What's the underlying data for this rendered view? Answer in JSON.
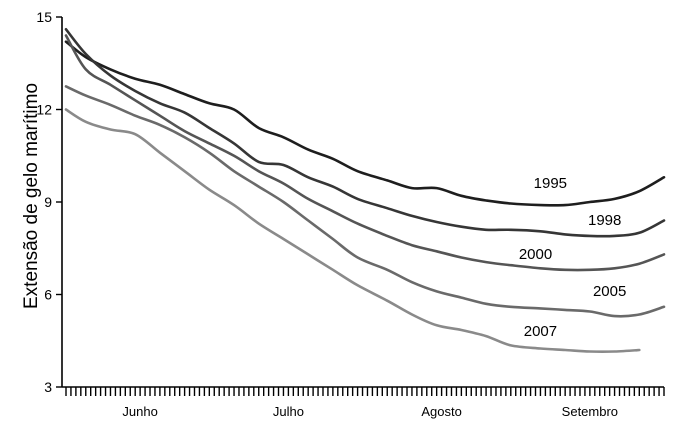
{
  "chart_data": {
    "type": "line",
    "title": "",
    "xlabel": "",
    "ylabel": "Extensão de gelo marítimo",
    "x_domain": [
      "Junho",
      "Setembro"
    ],
    "x_tick_labels": [
      "Junho",
      "Julho",
      "Agosto",
      "Setembro"
    ],
    "y_ticks": [
      3,
      6,
      9,
      12,
      15
    ],
    "ylim": [
      3,
      15
    ],
    "grid": false,
    "legend": "labels at line ends",
    "series": [
      {
        "name": "1995",
        "color": "#1e1e1e",
        "x": [
          "06-01",
          "06-05",
          "06-10",
          "06-15",
          "06-20",
          "06-25",
          "06-30",
          "07-05",
          "07-10",
          "07-15",
          "07-20",
          "07-25",
          "07-30",
          "08-05",
          "08-10",
          "08-15",
          "08-20",
          "08-25",
          "08-30",
          "09-05",
          "09-10",
          "09-15",
          "09-20",
          "09-25",
          "09-30"
        ],
        "values": [
          14.2,
          13.7,
          13.3,
          13.0,
          12.8,
          12.5,
          12.2,
          12.0,
          11.4,
          11.1,
          10.7,
          10.4,
          10.0,
          9.7,
          9.45,
          9.45,
          9.2,
          9.05,
          8.95,
          8.9,
          8.9,
          9.0,
          9.1,
          9.35,
          9.8
        ]
      },
      {
        "name": "1998",
        "color": "#363636",
        "x": [
          "06-01",
          "06-05",
          "06-10",
          "06-15",
          "06-20",
          "06-25",
          "06-30",
          "07-05",
          "07-10",
          "07-15",
          "07-20",
          "07-25",
          "07-30",
          "08-05",
          "08-10",
          "08-15",
          "08-20",
          "08-25",
          "08-30",
          "09-05",
          "09-10",
          "09-15",
          "09-20",
          "09-25",
          "09-30"
        ],
        "values": [
          14.6,
          13.8,
          13.1,
          12.6,
          12.2,
          11.9,
          11.4,
          10.9,
          10.3,
          10.2,
          9.8,
          9.5,
          9.1,
          8.8,
          8.55,
          8.35,
          8.2,
          8.1,
          8.1,
          8.05,
          7.95,
          7.9,
          7.9,
          8.0,
          8.4
        ]
      },
      {
        "name": "2000",
        "color": "#555555",
        "x": [
          "06-01",
          "06-05",
          "06-10",
          "06-15",
          "06-20",
          "06-25",
          "06-30",
          "07-05",
          "07-10",
          "07-15",
          "07-20",
          "07-25",
          "07-30",
          "08-05",
          "08-10",
          "08-15",
          "08-20",
          "08-25",
          "08-30",
          "09-05",
          "09-10",
          "09-15",
          "09-20",
          "09-25",
          "09-30"
        ],
        "values": [
          14.4,
          13.3,
          12.8,
          12.3,
          11.8,
          11.3,
          10.9,
          10.5,
          10.0,
          9.6,
          9.1,
          8.7,
          8.3,
          7.9,
          7.6,
          7.4,
          7.2,
          7.05,
          6.95,
          6.85,
          6.8,
          6.8,
          6.85,
          7.0,
          7.3
        ]
      },
      {
        "name": "2005",
        "color": "#6a6a6a",
        "x": [
          "06-01",
          "06-05",
          "06-10",
          "06-15",
          "06-20",
          "06-25",
          "06-30",
          "07-05",
          "07-10",
          "07-15",
          "07-20",
          "07-25",
          "07-30",
          "08-05",
          "08-10",
          "08-15",
          "08-20",
          "08-25",
          "08-30",
          "09-05",
          "09-10",
          "09-15",
          "09-20",
          "09-25",
          "09-30"
        ],
        "values": [
          12.75,
          12.45,
          12.15,
          11.8,
          11.5,
          11.1,
          10.6,
          10.0,
          9.5,
          9.0,
          8.4,
          7.8,
          7.2,
          6.8,
          6.4,
          6.1,
          5.9,
          5.7,
          5.6,
          5.55,
          5.5,
          5.45,
          5.3,
          5.35,
          5.6
        ]
      },
      {
        "name": "2007",
        "color": "#8a8a8a",
        "x": [
          "06-01",
          "06-05",
          "06-10",
          "06-15",
          "06-20",
          "06-25",
          "06-30",
          "07-05",
          "07-10",
          "07-15",
          "07-20",
          "07-25",
          "07-30",
          "08-05",
          "08-10",
          "08-15",
          "08-20",
          "08-25",
          "08-30",
          "09-05",
          "09-10",
          "09-15",
          "09-20",
          "09-25"
        ],
        "values": [
          12.0,
          11.6,
          11.35,
          11.2,
          10.6,
          10.0,
          9.4,
          8.9,
          8.3,
          7.8,
          7.3,
          6.8,
          6.3,
          5.8,
          5.35,
          5.0,
          4.85,
          4.65,
          4.35,
          4.25,
          4.2,
          4.15,
          4.15,
          4.2
        ]
      }
    ]
  }
}
